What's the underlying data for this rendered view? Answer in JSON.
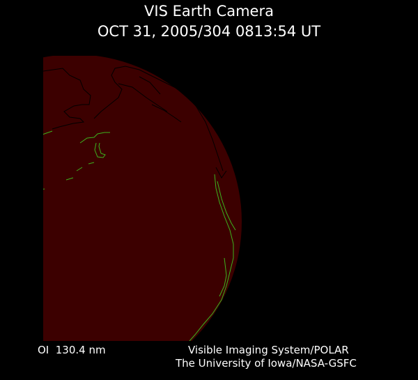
{
  "header": {
    "title": "VIS Earth Camera",
    "subtitle": "OCT 31, 2005/304 0813:54 UT"
  },
  "footer": {
    "wavelength": "OI  130.4 nm",
    "instrument": "Visible Imaging System/POLAR",
    "institution": "The University of Iowa/NASA-GSFC"
  },
  "colors": {
    "background": "#000000",
    "earth_disk": "#3c0000",
    "coastline_day": "#000000",
    "coastline_night": "#3cb41e"
  }
}
